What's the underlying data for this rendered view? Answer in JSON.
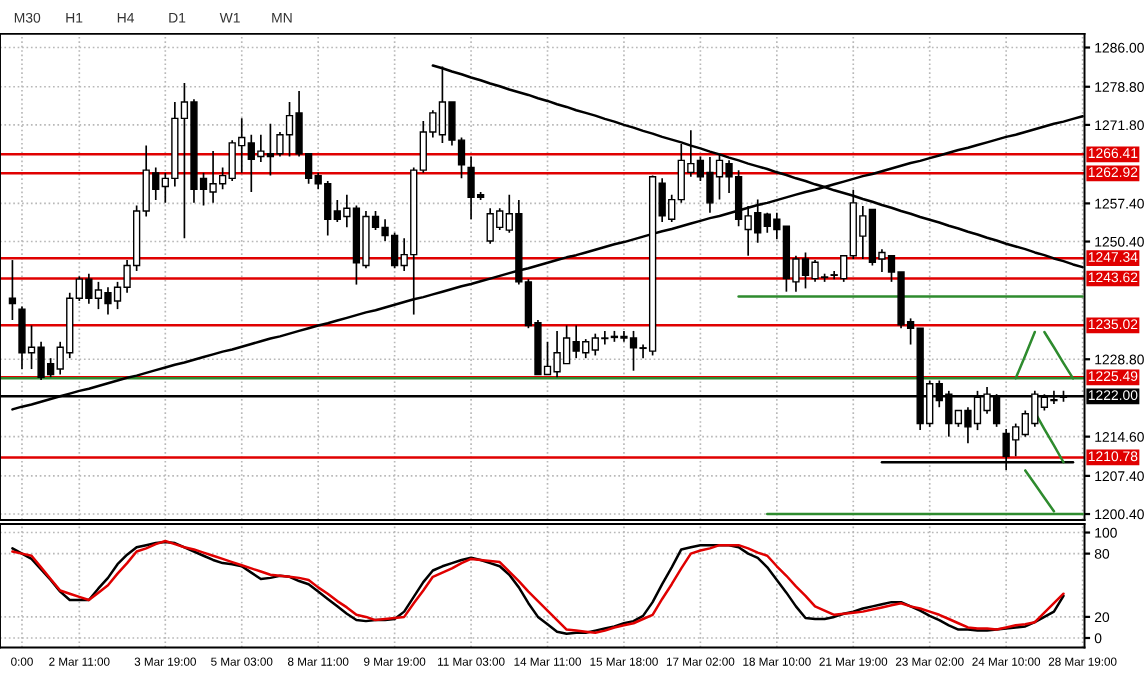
{
  "chart_data": [
    {
      "type": "candlestick",
      "annotations": [
        "M30",
        "H1",
        "H4",
        "D1",
        "W1",
        "MN"
      ],
      "categories": [
        null,
        null,
        null,
        null,
        null,
        null,
        null,
        null,
        null,
        null,
        null,
        null,
        null,
        null,
        null,
        null,
        null,
        null,
        null,
        null,
        null,
        null,
        null,
        null,
        null,
        null,
        null,
        null,
        null,
        null,
        null,
        null,
        null,
        null,
        null,
        null,
        null,
        null,
        null,
        null,
        null,
        null,
        null,
        null,
        null,
        null,
        null,
        null,
        null,
        null,
        null,
        null,
        null,
        null,
        null,
        null,
        null,
        null,
        null,
        null,
        null,
        null,
        null,
        null,
        null,
        null,
        null,
        null,
        null,
        null,
        null,
        null,
        null,
        null,
        null,
        null,
        null,
        null,
        null,
        null,
        null,
        null,
        null,
        null,
        null,
        null,
        null,
        null,
        null,
        null,
        null,
        null,
        null,
        null,
        null,
        null,
        null,
        null,
        null,
        null,
        null,
        null,
        null,
        null,
        null,
        null,
        null,
        null,
        null,
        null,
        null,
        null,
        null
      ],
      "ohlc": [
        [
          1240,
          1247,
          1236,
          1239
        ],
        [
          1238,
          1238.5,
          1227,
          1230
        ],
        [
          1230,
          1235,
          1227,
          1231
        ],
        [
          1231,
          1232,
          1225,
          1225.5
        ],
        [
          1228,
          1229,
          1225.5,
          1226
        ],
        [
          1227,
          1232,
          1226,
          1231
        ],
        [
          1230,
          1241,
          1229,
          1240
        ],
        [
          1240,
          1244,
          1239.5,
          1243.5
        ],
        [
          1243.5,
          1244.5,
          1239,
          1240
        ],
        [
          1240,
          1243,
          1238,
          1241.5
        ],
        [
          1241,
          1242,
          1237,
          1239
        ],
        [
          1239.5,
          1243,
          1238,
          1242
        ],
        [
          1242,
          1247,
          1241,
          1246
        ],
        [
          1246,
          1257,
          1245,
          1256
        ],
        [
          1256,
          1268,
          1255,
          1263.5
        ],
        [
          1263,
          1264,
          1258,
          1260
        ],
        [
          1260.5,
          1263,
          1257.5,
          1262
        ],
        [
          1262,
          1276,
          1260.5,
          1273
        ],
        [
          1273,
          1279.5,
          1251,
          1276
        ],
        [
          1276,
          1276.5,
          1257.5,
          1260
        ],
        [
          1262,
          1263,
          1257,
          1260
        ],
        [
          1259.5,
          1267,
          1257.5,
          1261
        ],
        [
          1261,
          1264,
          1260,
          1262.5
        ],
        [
          1262,
          1269,
          1261.5,
          1268.5
        ],
        [
          1268,
          1273,
          1263,
          1269.5
        ],
        [
          1268.5,
          1270,
          1259.5,
          1265.5
        ],
        [
          1266,
          1270,
          1265,
          1267
        ],
        [
          1266.5,
          1272,
          1262.5,
          1266
        ],
        [
          1266.5,
          1270.5,
          1266,
          1270
        ],
        [
          1270,
          1276,
          1266,
          1273.5
        ],
        [
          1274,
          1278,
          1266,
          1266.5
        ],
        [
          1266.5,
          1266.5,
          1261,
          1262
        ],
        [
          1262.5,
          1263,
          1260,
          1261
        ],
        [
          1261,
          1261.5,
          1251.5,
          1254.5
        ],
        [
          1256,
          1258,
          1254,
          1254.5
        ],
        [
          1255,
          1259,
          1253,
          1256.5
        ],
        [
          1256.5,
          1257,
          1242.5,
          1246.5
        ],
        [
          1246,
          1256,
          1245.5,
          1255
        ],
        [
          1255,
          1256,
          1252.5,
          1253
        ],
        [
          1253,
          1254.5,
          1250.5,
          1251.5
        ],
        [
          1251.5,
          1252,
          1245.5,
          1246
        ],
        [
          1246,
          1251,
          1245,
          1248
        ],
        [
          1248,
          1264,
          1237,
          1263.5
        ],
        [
          1263.5,
          1272.5,
          1263,
          1270.5
        ],
        [
          1270.5,
          1274.5,
          1269.5,
          1274
        ],
        [
          1270,
          1282.5,
          1268.5,
          1276
        ],
        [
          1276,
          1276,
          1268,
          1269
        ],
        [
          1269,
          1269.5,
          1262,
          1264.5
        ],
        [
          1264,
          1266,
          1254.5,
          1258.5
        ],
        [
          1259,
          1259.5,
          1258,
          1258.5
        ],
        [
          1250.5,
          1256.5,
          1250,
          1255.5
        ],
        [
          1253,
          1256.5,
          1252.5,
          1256
        ],
        [
          1252.5,
          1259,
          1252,
          1255.5
        ],
        [
          1255.5,
          1258,
          1242.5,
          1243
        ],
        [
          1243,
          1243.5,
          1234.5,
          1235
        ],
        [
          1235.5,
          1236,
          1226,
          1226
        ],
        [
          1226,
          1232,
          1226,
          1227.5
        ],
        [
          1226.5,
          1234,
          1225.5,
          1230
        ],
        [
          1228,
          1235,
          1228,
          1232.7
        ],
        [
          1232,
          1235,
          1229,
          1230.3
        ],
        [
          1230,
          1232.5,
          1229,
          1232
        ],
        [
          1230.5,
          1233.5,
          1229.5,
          1232.7
        ],
        [
          1232.7,
          1234,
          1231.5,
          1232.6
        ],
        [
          1232.8,
          1234,
          1232,
          1233
        ],
        [
          1233,
          1234,
          1232,
          1232.7
        ],
        [
          1232.7,
          1234,
          1226.7,
          1230.9
        ],
        [
          1230.9,
          1231.5,
          1229,
          1230.8
        ],
        [
          1230.3,
          1262.5,
          1229.5,
          1262.3
        ],
        [
          1261.1,
          1262,
          1254,
          1255.1
        ],
        [
          1254.5,
          1259,
          1254,
          1258.1
        ],
        [
          1258.1,
          1268.3,
          1257.5,
          1265.3
        ],
        [
          1263.1,
          1270.8,
          1262.3,
          1264.7
        ],
        [
          1265.3,
          1266,
          1261.5,
          1262.3
        ],
        [
          1263.1,
          1265.9,
          1255.7,
          1257.5
        ],
        [
          1262.3,
          1266.3,
          1258.1,
          1265.3
        ],
        [
          1264.7,
          1265.3,
          1259.3,
          1262.3
        ],
        [
          1262.3,
          1263.5,
          1253.2,
          1254.5
        ],
        [
          1252.6,
          1256.9,
          1247.8,
          1255.1
        ],
        [
          1255.7,
          1258.1,
          1250.2,
          1252
        ],
        [
          1255.4,
          1255.7,
          1252,
          1253.2
        ],
        [
          1254.5,
          1255.7,
          1250.8,
          1252.6
        ],
        [
          1253.2,
          1253.2,
          1241.2,
          1243.6
        ],
        [
          1243,
          1247.8,
          1241.2,
          1247.2
        ],
        [
          1247.2,
          1248.4,
          1241.8,
          1244.2
        ],
        [
          1243.6,
          1247,
          1243,
          1246.6
        ],
        [
          1243.8,
          1244.5,
          1243,
          1243.9
        ],
        [
          1244.2,
          1245,
          1243.5,
          1244.3
        ],
        [
          1243.6,
          1247.8,
          1243,
          1247.8
        ],
        [
          1247.8,
          1259.9,
          1247.2,
          1257.5
        ],
        [
          1251.4,
          1256.9,
          1247.2,
          1255.1
        ],
        [
          1256.3,
          1256.3,
          1246,
          1246.6
        ],
        [
          1247.2,
          1249,
          1244.8,
          1248.4
        ],
        [
          1247.8,
          1247.8,
          1243,
          1244.8
        ],
        [
          1244.8,
          1244.8,
          1234.5,
          1235.1
        ],
        [
          1235.7,
          1236.3,
          1231.5,
          1234.5
        ],
        [
          1234.5,
          1234.5,
          1215.8,
          1217
        ],
        [
          1217,
          1224.9,
          1216.4,
          1224.3
        ],
        [
          1224.3,
          1224.9,
          1220,
          1221.2
        ],
        [
          1222.4,
          1223,
          1214.6,
          1217
        ],
        [
          1217,
          1219.4,
          1216.4,
          1219.4
        ],
        [
          1219.4,
          1220,
          1213.4,
          1216.4
        ],
        [
          1217,
          1223,
          1215.8,
          1221.8
        ],
        [
          1219.4,
          1223.7,
          1218.8,
          1222.4
        ],
        [
          1222.1,
          1222.4,
          1216.4,
          1217
        ],
        [
          1215.2,
          1216,
          1208.5,
          1211
        ],
        [
          1214,
          1217,
          1211,
          1216.4
        ],
        [
          1215,
          1219.4,
          1214.6,
          1218.8
        ],
        [
          1217,
          1223,
          1216.4,
          1222.4
        ],
        [
          1220,
          1222.4,
          1219.4,
          1221.8
        ],
        [
          1221.2,
          1223,
          1220.6,
          1221.4
        ],
        [
          1221.8,
          1223,
          1221,
          1222
        ],
        null,
        null
      ],
      "series": [
        {
          "type": "line",
          "color": "#000000",
          "values": [
            1219.6,
            1220.1,
            1220.5,
            1221.0,
            1221.5,
            1222.0,
            1222.5,
            1223.0,
            1223.4,
            1223.9,
            1224.4,
            1224.9,
            1225.4,
            1225.8,
            1226.3,
            1226.8,
            1227.3,
            1227.8,
            1228.2,
            1228.7,
            1229.2,
            1229.7,
            1230.2,
            1230.6,
            1231.1,
            1231.6,
            1232.1,
            1232.6,
            1233.0,
            1233.5,
            1234.0,
            1234.5,
            1235.0,
            1235.4,
            1235.9,
            1236.4,
            1236.9,
            1237.4,
            1237.8,
            1238.3,
            1238.8,
            1239.3,
            1239.8,
            1240.2,
            1240.7,
            1241.2,
            1241.7,
            1242.2,
            1242.6,
            1243.1,
            1243.6,
            1244.1,
            1244.6,
            1245.1,
            1245.5,
            1246.0,
            1246.5,
            1247.0,
            1247.5,
            1247.9,
            1248.4,
            1248.9,
            1249.4,
            1249.9,
            1250.3,
            1250.8,
            1251.3,
            1251.8,
            1252.3,
            1252.7,
            1253.2,
            1253.7,
            1254.2,
            1254.7,
            1255.1,
            1255.6,
            1256.1,
            1256.6,
            1257.1,
            1257.5,
            1258.0,
            1258.5,
            1259.0,
            1259.5,
            1259.9,
            1260.4,
            1260.9,
            1261.4,
            1261.9,
            1262.4,
            1262.8,
            1263.3,
            1263.8,
            1264.3,
            1264.8,
            1265.2,
            1265.7,
            1266.2,
            1266.7,
            1267.2,
            1267.6,
            1268.1,
            1268.6,
            1269.1,
            1269.6,
            1270.0,
            1270.5,
            1271.0,
            1271.5,
            1272.0,
            1272.4,
            1272.9,
            1273.4
          ]
        },
        {
          "type": "line",
          "color": "#000000",
          "values": [
            null,
            null,
            null,
            null,
            null,
            null,
            null,
            null,
            null,
            null,
            null,
            null,
            null,
            null,
            null,
            null,
            null,
            null,
            null,
            null,
            null,
            null,
            null,
            null,
            null,
            null,
            null,
            null,
            null,
            null,
            null,
            null,
            null,
            null,
            null,
            null,
            null,
            null,
            null,
            null,
            null,
            null,
            null,
            null,
            1282.7,
            1282.2,
            1281.6,
            1281.1,
            1280.5,
            1280.0,
            1279.4,
            1278.9,
            1278.3,
            1277.8,
            1277.3,
            1276.7,
            1276.2,
            1275.6,
            1275.1,
            1274.5,
            1274.0,
            1273.5,
            1272.9,
            1272.4,
            1271.8,
            1271.3,
            1270.7,
            1270.2,
            1269.6,
            1269.1,
            1268.6,
            1268.0,
            1267.5,
            1266.9,
            1266.4,
            1265.8,
            1265.3,
            1264.7,
            1264.2,
            1263.7,
            1263.1,
            1262.6,
            1262.0,
            1261.5,
            1260.9,
            1260.4,
            1259.8,
            1259.3,
            1258.8,
            1258.2,
            1257.7,
            1257.1,
            1256.6,
            1256.0,
            1255.5,
            1254.9,
            1254.4,
            1253.9,
            1253.3,
            1252.8,
            1252.2,
            1251.7,
            1251.1,
            1250.6,
            1250.0,
            1249.5,
            1249.0,
            1248.4,
            1247.9,
            1247.3,
            1246.8,
            1246.2,
            1245.7
          ]
        },
        {
          "type": "line",
          "color": "#2e8b2e",
          "values": [
            null,
            null,
            null,
            null,
            null,
            null,
            null,
            null,
            null,
            null,
            null,
            null,
            null,
            null,
            null,
            null,
            null,
            null,
            null,
            null,
            null,
            null,
            null,
            null,
            null,
            null,
            null,
            null,
            null,
            null,
            null,
            null,
            null,
            null,
            null,
            null,
            null,
            null,
            null,
            null,
            null,
            null,
            null,
            null,
            null,
            null,
            null,
            null,
            null,
            null,
            null,
            null,
            null,
            null,
            null,
            null,
            null,
            null,
            null,
            null,
            null,
            null,
            null,
            null,
            null,
            null,
            null,
            null,
            null,
            null,
            null,
            null,
            null,
            null,
            null,
            null,
            1240.3,
            1240.3,
            1240.3,
            1240.3,
            1240.3,
            1240.3,
            1240.3,
            1240.3,
            1240.3,
            1240.3,
            1240.3,
            1240.3,
            1240.3,
            1240.3,
            1240.3,
            1240.3,
            1240.3,
            1240.3,
            1240.3,
            1240.3,
            1240.3,
            1240.3,
            1240.3,
            1240.3,
            1240.3,
            1240.3,
            1240.3,
            1240.3,
            1240.3,
            1240.3,
            1240.3,
            1240.3,
            1240.3,
            1240.3,
            1240.3,
            1240.3,
            1240.3
          ]
        },
        {
          "type": "line",
          "color": "#2e8b2e",
          "values": [
            null,
            null,
            null,
            null,
            null,
            null,
            null,
            null,
            null,
            null,
            null,
            null,
            null,
            null,
            null,
            null,
            null,
            null,
            null,
            null,
            null,
            null,
            null,
            null,
            null,
            null,
            null,
            null,
            null,
            null,
            null,
            null,
            null,
            null,
            null,
            null,
            null,
            null,
            null,
            null,
            null,
            null,
            null,
            null,
            null,
            null,
            null,
            null,
            null,
            null,
            null,
            null,
            null,
            null,
            null,
            null,
            null,
            null,
            null,
            null,
            null,
            null,
            null,
            null,
            null,
            null,
            null,
            null,
            null,
            null,
            null,
            null,
            null,
            null,
            null,
            null,
            null,
            null,
            null,
            1200.4,
            1200.4,
            1200.4,
            1200.4,
            1200.4,
            1200.4,
            1200.4,
            1200.4,
            1200.4,
            1200.4,
            1200.4,
            1200.4,
            1200.4,
            1200.4,
            1200.4,
            1200.4,
            1200.4,
            1200.4,
            1200.4,
            1200.4,
            1200.4,
            1200.4,
            1200.4,
            1200.4,
            1200.4,
            1200.4,
            1200.4,
            1200.4,
            1200.4,
            1200.4,
            1200.4,
            1200.4,
            1200.4,
            1200.4
          ]
        },
        {
          "type": "line",
          "color": "#000000",
          "values": [
            null,
            null,
            null,
            null,
            null,
            null,
            null,
            null,
            null,
            null,
            null,
            null,
            null,
            null,
            null,
            null,
            null,
            null,
            null,
            null,
            null,
            null,
            null,
            null,
            null,
            null,
            null,
            null,
            null,
            null,
            null,
            null,
            null,
            null,
            null,
            null,
            null,
            null,
            null,
            null,
            null,
            null,
            null,
            null,
            null,
            null,
            null,
            null,
            null,
            null,
            null,
            null,
            null,
            null,
            null,
            null,
            null,
            null,
            null,
            null,
            null,
            null,
            null,
            null,
            null,
            null,
            null,
            null,
            null,
            null,
            null,
            null,
            null,
            null,
            null,
            null,
            null,
            null,
            null,
            null,
            null,
            null,
            null,
            null,
            null,
            null,
            null,
            null,
            null,
            null,
            null,
            1209.9,
            1209.9,
            1209.9,
            1209.9,
            1209.9,
            1209.9,
            1209.9,
            1209.9,
            1209.9,
            1209.9,
            1209.9,
            1209.9,
            1209.9,
            1209.9,
            1209.9,
            1209.9,
            1209.9,
            1209.9,
            1209.9,
            1209.9,
            1209.9,
            null
          ]
        },
        {
          "type": "line",
          "color": "#2e8b2e",
          "values": [
            null,
            null,
            null,
            null,
            null,
            null,
            null,
            null,
            null,
            null,
            null,
            null,
            null,
            null,
            null,
            null,
            null,
            null,
            null,
            null,
            null,
            null,
            null,
            null,
            null,
            null,
            null,
            null,
            null,
            null,
            null,
            null,
            null,
            null,
            null,
            null,
            null,
            null,
            null,
            null,
            null,
            null,
            null,
            null,
            null,
            null,
            null,
            null,
            null,
            null,
            null,
            null,
            null,
            null,
            null,
            null,
            null,
            null,
            null,
            null,
            null,
            null,
            null,
            null,
            null,
            null,
            null,
            null,
            null,
            null,
            null,
            null,
            null,
            null,
            null,
            null,
            null,
            null,
            null,
            null,
            null,
            null,
            null,
            null,
            null,
            null,
            null,
            null,
            null,
            null,
            null,
            null,
            null,
            null,
            null,
            null,
            null,
            null,
            null,
            null,
            null,
            null,
            null,
            null,
            null,
            1225.3,
            1229.5,
            1233.8,
            null,
            null,
            null,
            null,
            null
          ]
        },
        {
          "type": "line",
          "color": "#2e8b2e",
          "values": [
            null,
            null,
            null,
            null,
            null,
            null,
            null,
            null,
            null,
            null,
            null,
            null,
            null,
            null,
            null,
            null,
            null,
            null,
            null,
            null,
            null,
            null,
            null,
            null,
            null,
            null,
            null,
            null,
            null,
            null,
            null,
            null,
            null,
            null,
            null,
            null,
            null,
            null,
            null,
            null,
            null,
            null,
            null,
            null,
            null,
            null,
            null,
            null,
            null,
            null,
            null,
            null,
            null,
            null,
            null,
            null,
            null,
            null,
            null,
            null,
            null,
            null,
            null,
            null,
            null,
            null,
            null,
            null,
            null,
            null,
            null,
            null,
            null,
            null,
            null,
            null,
            null,
            null,
            null,
            null,
            null,
            null,
            null,
            null,
            null,
            null,
            null,
            null,
            null,
            null,
            null,
            null,
            null,
            null,
            null,
            null,
            null,
            null,
            null,
            null,
            null,
            null,
            null,
            null,
            null,
            null,
            null,
            null,
            1233.8,
            1231,
            1228.1,
            1225.3,
            null
          ]
        },
        {
          "type": "line",
          "color": "#2e8b2e",
          "values": [
            null,
            null,
            null,
            null,
            null,
            null,
            null,
            null,
            null,
            null,
            null,
            null,
            null,
            null,
            null,
            null,
            null,
            null,
            null,
            null,
            null,
            null,
            null,
            null,
            null,
            null,
            null,
            null,
            null,
            null,
            null,
            null,
            null,
            null,
            null,
            null,
            null,
            null,
            null,
            null,
            null,
            null,
            null,
            null,
            null,
            null,
            null,
            null,
            null,
            null,
            null,
            null,
            null,
            null,
            null,
            null,
            null,
            null,
            null,
            null,
            null,
            null,
            null,
            null,
            null,
            null,
            null,
            null,
            null,
            null,
            null,
            null,
            null,
            null,
            null,
            null,
            null,
            null,
            null,
            null,
            null,
            null,
            null,
            null,
            null,
            null,
            null,
            null,
            null,
            null,
            null,
            null,
            null,
            null,
            null,
            null,
            null,
            null,
            null,
            null,
            null,
            null,
            null,
            null,
            null,
            null,
            null,
            1219.1,
            1216,
            1213,
            1209.9,
            null,
            null
          ]
        },
        {
          "type": "line",
          "color": "#2e8b2e",
          "values": [
            null,
            null,
            null,
            null,
            null,
            null,
            null,
            null,
            null,
            null,
            null,
            null,
            null,
            null,
            null,
            null,
            null,
            null,
            null,
            null,
            null,
            null,
            null,
            null,
            null,
            null,
            null,
            null,
            null,
            null,
            null,
            null,
            null,
            null,
            null,
            null,
            null,
            null,
            null,
            null,
            null,
            null,
            null,
            null,
            null,
            null,
            null,
            null,
            null,
            null,
            null,
            null,
            null,
            null,
            null,
            null,
            null,
            null,
            null,
            null,
            null,
            null,
            null,
            null,
            null,
            null,
            null,
            null,
            null,
            null,
            null,
            null,
            null,
            null,
            null,
            null,
            null,
            null,
            null,
            null,
            null,
            null,
            null,
            null,
            null,
            null,
            null,
            null,
            null,
            null,
            null,
            null,
            null,
            null,
            null,
            null,
            null,
            null,
            null,
            null,
            null,
            null,
            null,
            null,
            null,
            null,
            1208.4,
            1205.9,
            1203.4,
            1200.9,
            null,
            null,
            null
          ]
        }
      ],
      "ref_lines": [
        {
          "axis": "y",
          "value": 1266.41,
          "label": "1266.41",
          "color": "#e00000"
        },
        {
          "axis": "y",
          "value": 1262.92,
          "label": "1262.92",
          "color": "#e00000"
        },
        {
          "axis": "y",
          "value": 1247.34,
          "label": "1247.34",
          "color": "#e00000"
        },
        {
          "axis": "y",
          "value": 1243.62,
          "label": "1243.62",
          "color": "#e00000"
        },
        {
          "axis": "y",
          "value": 1235.02,
          "label": "1235.02",
          "color": "#e00000"
        },
        {
          "axis": "y",
          "value": 1225.49,
          "label": "1225.49",
          "color": "#e00000"
        },
        {
          "axis": "y",
          "value": 1225.3,
          "color": "#2e8b2e"
        },
        {
          "axis": "y",
          "value": 1222.0,
          "label": "1222.00",
          "color": "#000000"
        },
        {
          "axis": "y",
          "value": 1210.78,
          "label": "1210.78",
          "color": "#e00000"
        }
      ],
      "ylim": [
        1199.3,
        1288.5
      ],
      "yticks": [
        {
          "value": 1286,
          "label": "1286.00"
        },
        {
          "value": 1278.8,
          "label": "1278.80"
        },
        {
          "value": 1271.8,
          "label": "1271.80"
        },
        {
          "value": 1257.4,
          "label": "1257.40"
        },
        {
          "value": 1250.4,
          "label": "1250.40"
        },
        {
          "value": 1228.8,
          "label": "1228.80"
        },
        {
          "value": 1214.6,
          "label": "1214.60"
        },
        {
          "value": 1207.4,
          "label": "1207.40"
        },
        {
          "value": 1200.4,
          "label": "1200.40"
        }
      ],
      "tick_labels": "y",
      "grid": true,
      "legend": false
    },
    {
      "type": "line",
      "categories": [
        null,
        "0:00",
        null,
        null,
        null,
        null,
        null,
        "2 Mar 11:00",
        null,
        null,
        null,
        null,
        null,
        null,
        null,
        null,
        "3 Mar 19:00",
        null,
        null,
        null,
        null,
        null,
        null,
        null,
        "5 Mar 03:00",
        null,
        null,
        null,
        null,
        null,
        null,
        null,
        "8 Mar 11:00",
        null,
        null,
        null,
        null,
        null,
        null,
        null,
        "9 Mar 19:00",
        null,
        null,
        null,
        null,
        null,
        null,
        null,
        "11 Mar 03:00",
        null,
        null,
        null,
        null,
        null,
        null,
        null,
        "14 Mar 11:00",
        null,
        null,
        null,
        null,
        null,
        null,
        null,
        "15 Mar 18:00",
        null,
        null,
        null,
        null,
        null,
        null,
        null,
        "17 Mar 02:00",
        null,
        null,
        null,
        null,
        null,
        null,
        null,
        "18 Mar 10:00",
        null,
        null,
        null,
        null,
        null,
        null,
        null,
        "21 Mar 19:00",
        null,
        null,
        null,
        null,
        null,
        null,
        null,
        "23 Mar 02:00",
        null,
        null,
        null,
        null,
        null,
        null,
        null,
        "24 Mar 10:00",
        null,
        null,
        null,
        null,
        null,
        null,
        null,
        "28 Mar 19:00"
      ],
      "series": [
        {
          "color": "#000000",
          "values": [
            85,
            80,
            75,
            65,
            55,
            44,
            36,
            36,
            36,
            47,
            57,
            70,
            79,
            86,
            88,
            90,
            91,
            90,
            86,
            82,
            78,
            74,
            71,
            70,
            68,
            62,
            56,
            57,
            59,
            58,
            54,
            51,
            44,
            37,
            30,
            23,
            17,
            16,
            17,
            17,
            18,
            25,
            39,
            53,
            64,
            68,
            71,
            74,
            76,
            74,
            71,
            68,
            60,
            48,
            33,
            20,
            13,
            6,
            4,
            5,
            5,
            7,
            9,
            11,
            14,
            16,
            21,
            34,
            51,
            67,
            84,
            86,
            88,
            88,
            88,
            88,
            86,
            80,
            76,
            67,
            55,
            43,
            30,
            19,
            18,
            18,
            20,
            23,
            25,
            28,
            30,
            32,
            34,
            34,
            30,
            26,
            21,
            17,
            12,
            8,
            8,
            7,
            7,
            8,
            9,
            10,
            11,
            15,
            20,
            25,
            40,
            null,
            null
          ]
        },
        {
          "color": "#e00000",
          "values": [
            82,
            80,
            78,
            67,
            56,
            45,
            42,
            39,
            36,
            43,
            50,
            61,
            71,
            82,
            85,
            89,
            92,
            89,
            86,
            84,
            81,
            78,
            75,
            72,
            69,
            66,
            63,
            60,
            59,
            58,
            57,
            55,
            48,
            42,
            35,
            29,
            22,
            20,
            17,
            18,
            19,
            20,
            33,
            45,
            58,
            62,
            66,
            71,
            75,
            74,
            73,
            72,
            63,
            54,
            44,
            35,
            26,
            17,
            8,
            7,
            6,
            5,
            7,
            10,
            12,
            14,
            18,
            22,
            37,
            51,
            66,
            80,
            83,
            85,
            88,
            88,
            88,
            85,
            81,
            78,
            68,
            59,
            49,
            40,
            30,
            26,
            22,
            23,
            24,
            25,
            27,
            29,
            31,
            33,
            30,
            28,
            25,
            22,
            18,
            14,
            10,
            9,
            9,
            8,
            10,
            12,
            13,
            15,
            24,
            33,
            42,
            null,
            null
          ]
        }
      ],
      "ylim": [
        -9,
        108
      ],
      "yticks": [
        100,
        80,
        20,
        0
      ],
      "grid": true,
      "legend": false
    }
  ]
}
